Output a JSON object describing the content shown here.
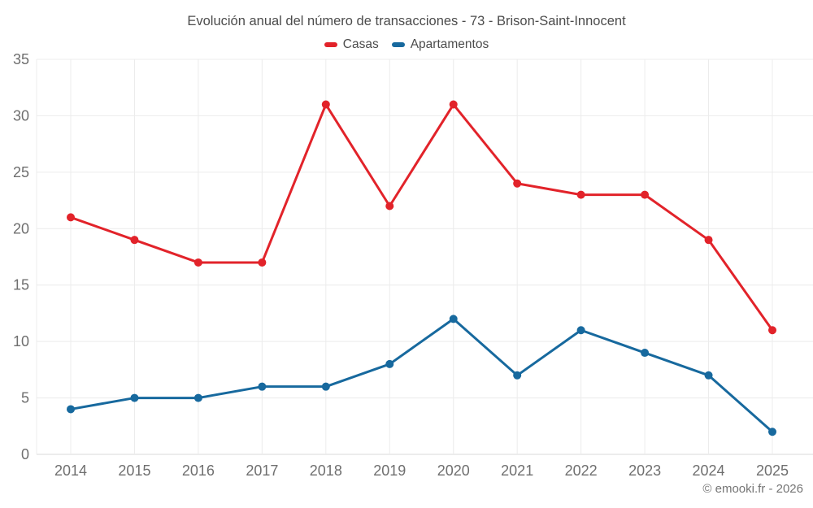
{
  "title": "Evolución anual del número de transacciones - 73 - Brison-Saint-Innocent",
  "copyright": "© emooki.fr - 2026",
  "colors": {
    "casas": "#e2232a",
    "apartamentos": "#17699e",
    "grid": "#ececec",
    "axis_line": "#d9d9d9",
    "axis_label": "#6f6f6f",
    "title_text": "#4c4c4c"
  },
  "chart_data": {
    "type": "line",
    "title": "Evolución anual del número de transacciones - 73 - Brison-Saint-Innocent",
    "categories": [
      "2014",
      "2015",
      "2016",
      "2017",
      "2018",
      "2019",
      "2020",
      "2021",
      "2022",
      "2023",
      "2024",
      "2025"
    ],
    "series": [
      {
        "name": "Casas",
        "color": "#e2232a",
        "values": [
          21,
          19,
          17,
          17,
          31,
          22,
          31,
          24,
          23,
          23,
          19,
          11
        ]
      },
      {
        "name": "Apartamentos",
        "color": "#17699e",
        "values": [
          4,
          5,
          5,
          6,
          6,
          8,
          12,
          7,
          11,
          9,
          7,
          2
        ]
      }
    ],
    "xlabel": "",
    "ylabel": "",
    "ylim": [
      0,
      35
    ],
    "ytick_step": 5,
    "yticks": [
      0,
      5,
      10,
      15,
      20,
      25,
      30,
      35
    ],
    "grid": true,
    "legend_position": "top",
    "marker": "circle"
  }
}
